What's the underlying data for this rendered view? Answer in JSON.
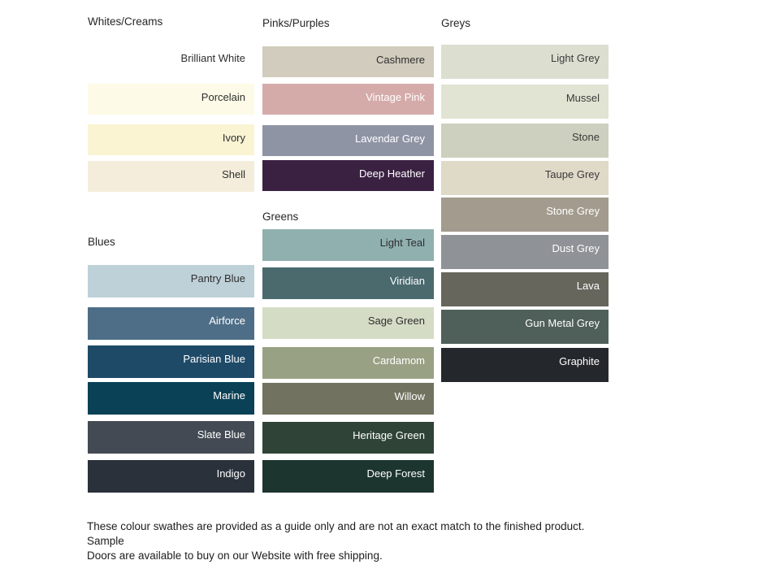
{
  "page": {
    "background": "#ffffff"
  },
  "columns": [
    {
      "name": "left",
      "sections": [
        {
          "header": "Whites/Creams",
          "swatches": [
            {
              "label": "Brilliant White",
              "color": "#ffffff",
              "text_color": "#2e2e2e"
            },
            {
              "label": "Porcelain",
              "color": "#fdfbe7",
              "text_color": "#2e2e2e"
            },
            {
              "label": "Ivory",
              "color": "#faf4d3",
              "text_color": "#2e2e2e"
            },
            {
              "label": "Shell",
              "color": "#f5eddc",
              "text_color": "#2e2e2e"
            }
          ]
        },
        {
          "header": "Blues",
          "swatches": [
            {
              "label": "Pantry Blue",
              "color": "#bed1d9",
              "text_color": "#2e2e2e"
            },
            {
              "label": "Airforce",
              "color": "#4e6e87",
              "text_color": "#ffffff"
            },
            {
              "label": "Parisian Blue",
              "color": "#1e4a68",
              "text_color": "#ffffff"
            },
            {
              "label": "Marine",
              "color": "#0b4156",
              "text_color": "#ffffff"
            },
            {
              "label": "Slate Blue",
              "color": "#434a53",
              "text_color": "#ffffff"
            },
            {
              "label": "Indigo",
              "color": "#2a313b",
              "text_color": "#ffffff"
            }
          ]
        }
      ]
    },
    {
      "name": "middle",
      "sections": [
        {
          "header": "Pinks/Purples",
          "swatches": [
            {
              "label": "Cashmere",
              "color": "#d2ccbe",
              "text_color": "#2e2e2e"
            },
            {
              "label": "Vintage Pink",
              "color": "#d5aba9",
              "text_color": "#ffffff"
            },
            {
              "label": "Lavendar Grey",
              "color": "#8f94a5",
              "text_color": "#ffffff"
            },
            {
              "label": "Deep Heather",
              "color": "#3a2142",
              "text_color": "#ffffff"
            }
          ]
        },
        {
          "header": "Greens",
          "swatches": [
            {
              "label": "Light Teal",
              "color": "#8fb0af",
              "text_color": "#2e2e2e"
            },
            {
              "label": "Viridian",
              "color": "#4a6a6e",
              "text_color": "#ffffff"
            },
            {
              "label": "Sage Green",
              "color": "#d5dcc6",
              "text_color": "#2e2e2e"
            },
            {
              "label": "Cardamom",
              "color": "#99a184",
              "text_color": "#ffffff"
            },
            {
              "label": "Willow",
              "color": "#71725f",
              "text_color": "#ffffff"
            },
            {
              "label": "Heritage Green",
              "color": "#2f4437",
              "text_color": "#ffffff"
            },
            {
              "label": "Deep Forest",
              "color": "#1c352f",
              "text_color": "#ffffff"
            }
          ]
        }
      ]
    },
    {
      "name": "right",
      "sections": [
        {
          "header": "Greys",
          "swatches": [
            {
              "label": "Light Grey",
              "color": "#dcded0",
              "text_color": "#3a3a3a"
            },
            {
              "label": "Mussel",
              "color": "#e2e4d3",
              "text_color": "#3a3a3a"
            },
            {
              "label": "Stone",
              "color": "#ced0bf",
              "text_color": "#3a3a3a"
            },
            {
              "label": "Taupe Grey",
              "color": "#dfd9c8",
              "text_color": "#3a3a3a"
            },
            {
              "label": "Stone Grey",
              "color": "#a29b8e",
              "text_color": "#ffffff"
            },
            {
              "label": "Dust Grey",
              "color": "#8f9296",
              "text_color": "#ffffff"
            },
            {
              "label": "Lava",
              "color": "#66665c",
              "text_color": "#ffffff"
            },
            {
              "label": "Gun Metal Grey",
              "color": "#4f5f5a",
              "text_color": "#ffffff"
            },
            {
              "label": "Graphite",
              "color": "#24282c",
              "text_color": "#ffffff"
            }
          ]
        }
      ]
    }
  ],
  "footer": {
    "lines": [
      "These colour swathes are provided as a guide only and are not an exact match to the finished product.  Sample",
      "Doors are available to buy on our Website with free shipping."
    ]
  }
}
